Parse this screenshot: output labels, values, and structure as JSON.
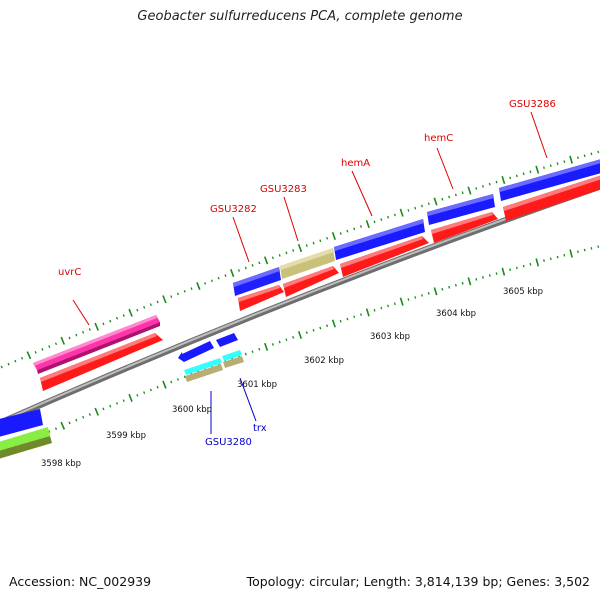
{
  "title": "Geobacter sulfurreducens PCA, complete genome",
  "footer": {
    "accession": "Accession: NC_002939",
    "stats": "Topology: circular; Length: 3,814,139 bp; Genes: 3,502"
  },
  "colors": {
    "forward_gene": "#1a1aff",
    "reverse_gene": "#ff1a1a",
    "label_red": "#e00000",
    "label_blue": "#0000cc",
    "backbone": "#888888",
    "tick": "#1a8a1a"
  },
  "scale_labels": [
    "3598 kbp",
    "3599 kbp",
    "3600 kbp",
    "3601 kbp",
    "3602 kbp",
    "3603 kbp",
    "3604 kbp",
    "3605 kbp"
  ],
  "gene_labels": [
    {
      "id": "uvrC",
      "text": "uvrC",
      "color": "red"
    },
    {
      "id": "gsu3282",
      "text": "GSU3282",
      "color": "red"
    },
    {
      "id": "gsu3283",
      "text": "GSU3283",
      "color": "red"
    },
    {
      "id": "hema",
      "text": "hemA",
      "color": "red"
    },
    {
      "id": "hemc",
      "text": "hemC",
      "color": "red"
    },
    {
      "id": "gsu3286",
      "text": "GSU3286",
      "color": "red"
    },
    {
      "id": "gsu3280",
      "text": "GSU3280",
      "color": "blue"
    },
    {
      "id": "trx",
      "text": "trx",
      "color": "blue"
    }
  ]
}
